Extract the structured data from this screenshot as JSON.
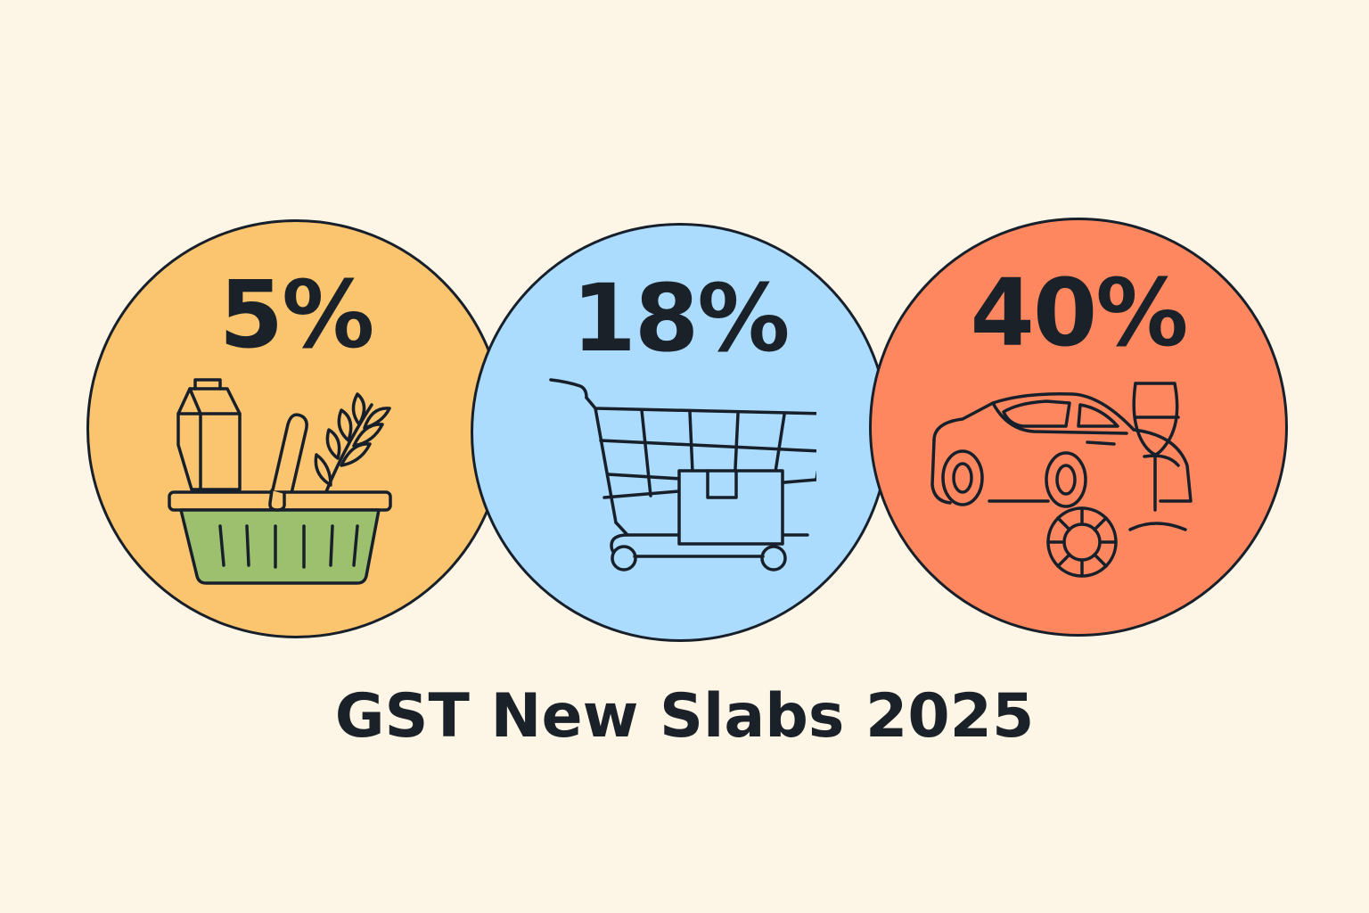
{
  "slabs": [
    {
      "rate": "5%",
      "icon": "grocery-basket-icon",
      "color": "#fbc46f"
    },
    {
      "rate": "18%",
      "icon": "shopping-cart-icon",
      "color": "#abdbfd"
    },
    {
      "rate": "40%",
      "icon": "luxury-car-wine-casino-icon",
      "color": "#fe875f"
    }
  ],
  "title": "GST New Slabs 2025",
  "colors": {
    "background": "#fdf5e6",
    "outline": "#17202a",
    "basket": "#9dc06e"
  }
}
